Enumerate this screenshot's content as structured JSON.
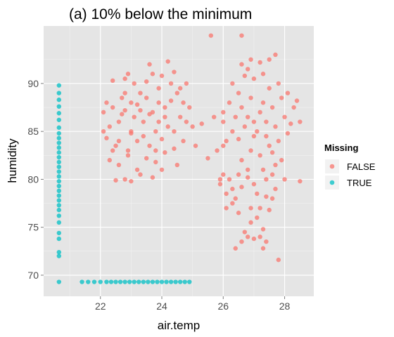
{
  "chart_data": {
    "type": "scatter",
    "title": "(a)  10% below the minimum",
    "xlabel": "air.temp",
    "ylabel": "humidity",
    "xlim": [
      20.15,
      28.95
    ],
    "ylim": [
      67.8,
      96.0
    ],
    "x_ticks": [
      22,
      24,
      26,
      28
    ],
    "y_ticks": [
      70,
      75,
      80,
      85,
      90
    ],
    "grid": true,
    "legend": {
      "title": "Missing",
      "position": "right",
      "entries": [
        {
          "label": "FALSE",
          "color": "#F8766D"
        },
        {
          "label": "TRUE",
          "color": "#00BFC4"
        }
      ]
    },
    "series": [
      {
        "name": "FALSE",
        "color": "#F8766D",
        "points": [
          [
            22.1,
            87.0
          ],
          [
            22.2,
            88.0
          ],
          [
            22.4,
            87.5
          ],
          [
            22.6,
            86.0
          ],
          [
            22.8,
            89.0
          ],
          [
            23.0,
            88.0
          ],
          [
            23.1,
            86.5
          ],
          [
            23.3,
            87.2
          ],
          [
            23.5,
            88.5
          ],
          [
            23.7,
            87.0
          ],
          [
            23.9,
            86.0
          ],
          [
            24.1,
            87.5
          ],
          [
            24.3,
            88.2
          ],
          [
            24.5,
            89.0
          ],
          [
            24.7,
            88.0
          ],
          [
            24.6,
            86.5
          ],
          [
            24.2,
            85.5
          ],
          [
            23.8,
            85.0
          ],
          [
            23.4,
            84.5
          ],
          [
            23.0,
            85.0
          ],
          [
            22.6,
            84.0
          ],
          [
            22.3,
            85.5
          ],
          [
            22.2,
            84.3
          ],
          [
            22.5,
            83.5
          ],
          [
            22.9,
            83.0
          ],
          [
            23.2,
            84.0
          ],
          [
            23.6,
            83.5
          ],
          [
            24.0,
            84.2
          ],
          [
            24.4,
            85.0
          ],
          [
            24.8,
            86.0
          ],
          [
            24.9,
            87.5
          ],
          [
            24.6,
            89.5
          ],
          [
            24.3,
            90.0
          ],
          [
            23.9,
            89.5
          ],
          [
            23.5,
            90.2
          ],
          [
            23.1,
            90.0
          ],
          [
            22.8,
            90.5
          ],
          [
            22.4,
            90.3
          ],
          [
            22.7,
            88.5
          ],
          [
            23.3,
            89.0
          ],
          [
            23.7,
            91.0
          ],
          [
            24.0,
            90.8
          ],
          [
            24.4,
            91.2
          ],
          [
            22.9,
            91.0
          ],
          [
            23.6,
            92.0
          ],
          [
            24.2,
            92.3
          ],
          [
            23.9,
            88.0
          ],
          [
            23.4,
            86.0
          ],
          [
            22.7,
            86.8
          ],
          [
            24.1,
            86.5
          ],
          [
            22.3,
            82.0
          ],
          [
            22.6,
            81.5
          ],
          [
            22.9,
            82.5
          ],
          [
            23.2,
            81.0
          ],
          [
            23.5,
            82.2
          ],
          [
            23.8,
            81.8
          ],
          [
            24.1,
            82.8
          ],
          [
            24.4,
            83.2
          ],
          [
            22.8,
            80.0
          ],
          [
            23.0,
            79.8
          ],
          [
            22.5,
            79.9
          ],
          [
            23.3,
            80.5
          ],
          [
            23.7,
            80.2
          ],
          [
            24.0,
            81.0
          ],
          [
            24.5,
            81.5
          ],
          [
            22.4,
            83.0
          ],
          [
            23.0,
            84.8
          ],
          [
            24.7,
            84.0
          ],
          [
            25.0,
            85.5
          ],
          [
            22.1,
            85.0
          ],
          [
            23.2,
            87.8
          ],
          [
            24.8,
            90.0
          ],
          [
            23.8,
            83.0
          ],
          [
            22.8,
            87.2
          ],
          [
            23.6,
            86.8
          ],
          [
            25.3,
            85.8
          ],
          [
            25.1,
            83.5
          ],
          [
            25.5,
            82.2
          ],
          [
            25.7,
            86.5
          ],
          [
            25.9,
            80.0
          ],
          [
            25.6,
            95.0
          ],
          [
            26.6,
            95.0
          ],
          [
            25.8,
            83.0
          ],
          [
            25.9,
            79.5
          ],
          [
            26.0,
            80.5
          ],
          [
            26.1,
            78.5
          ],
          [
            26.3,
            77.5
          ],
          [
            26.5,
            76.5
          ],
          [
            26.6,
            73.5
          ],
          [
            26.4,
            72.8
          ],
          [
            26.7,
            74.5
          ],
          [
            26.9,
            75.5
          ],
          [
            27.1,
            76.0
          ],
          [
            27.3,
            74.8
          ],
          [
            27.2,
            77.0
          ],
          [
            27.5,
            76.8
          ],
          [
            27.6,
            78.0
          ],
          [
            27.7,
            79.0
          ],
          [
            27.4,
            80.0
          ],
          [
            27.0,
            79.5
          ],
          [
            26.8,
            81.0
          ],
          [
            26.5,
            80.5
          ],
          [
            26.2,
            80.0
          ],
          [
            26.3,
            79.0
          ],
          [
            26.1,
            77.0
          ],
          [
            26.4,
            78.0
          ],
          [
            26.6,
            82.0
          ],
          [
            26.9,
            83.0
          ],
          [
            27.2,
            82.5
          ],
          [
            27.5,
            83.5
          ],
          [
            27.8,
            84.0
          ],
          [
            27.9,
            82.0
          ],
          [
            27.7,
            81.5
          ],
          [
            28.0,
            80.0
          ],
          [
            27.6,
            80.5
          ],
          [
            27.3,
            81.0
          ],
          [
            27.0,
            84.5
          ],
          [
            26.7,
            85.5
          ],
          [
            26.4,
            86.5
          ],
          [
            26.6,
            87.5
          ],
          [
            26.9,
            88.5
          ],
          [
            27.2,
            87.0
          ],
          [
            27.4,
            86.0
          ],
          [
            27.7,
            85.5
          ],
          [
            28.0,
            86.5
          ],
          [
            28.3,
            87.5
          ],
          [
            28.4,
            88.2
          ],
          [
            28.1,
            89.0
          ],
          [
            27.8,
            90.0
          ],
          [
            27.5,
            89.5
          ],
          [
            27.3,
            91.0
          ],
          [
            27.0,
            90.5
          ],
          [
            26.8,
            91.5
          ],
          [
            26.6,
            92.0
          ],
          [
            26.9,
            92.5
          ],
          [
            27.2,
            92.2
          ],
          [
            27.5,
            92.5
          ],
          [
            26.5,
            89.0
          ],
          [
            26.2,
            88.0
          ],
          [
            26.0,
            87.0
          ],
          [
            26.3,
            85.0
          ],
          [
            26.1,
            84.0
          ],
          [
            26.0,
            83.5
          ],
          [
            26.8,
            86.5
          ],
          [
            27.1,
            85.0
          ],
          [
            27.6,
            87.5
          ],
          [
            27.9,
            88.5
          ],
          [
            28.2,
            85.8
          ],
          [
            28.5,
            86.0
          ],
          [
            28.1,
            84.8
          ],
          [
            27.4,
            84.5
          ],
          [
            26.8,
            80.2
          ],
          [
            27.1,
            78.5
          ],
          [
            27.4,
            78.2
          ],
          [
            26.6,
            79.2
          ],
          [
            26.9,
            77.0
          ],
          [
            27.0,
            73.8
          ],
          [
            26.8,
            74.0
          ],
          [
            27.4,
            73.5
          ],
          [
            27.3,
            72.8
          ],
          [
            27.2,
            74.0
          ],
          [
            27.8,
            71.6
          ],
          [
            28.5,
            79.8
          ],
          [
            27.6,
            82.8
          ],
          [
            27.0,
            86.0
          ],
          [
            26.3,
            90.0
          ],
          [
            26.7,
            90.8
          ],
          [
            27.7,
            93.0
          ],
          [
            26.5,
            84.2
          ],
          [
            27.3,
            88.0
          ],
          [
            26.0,
            86.0
          ]
        ]
      },
      {
        "name": "TRUE",
        "color": "#00BFC4",
        "points": [
          [
            20.65,
            89.8
          ],
          [
            20.65,
            89.0
          ],
          [
            20.65,
            88.3
          ],
          [
            20.65,
            87.6
          ],
          [
            20.65,
            86.9
          ],
          [
            20.65,
            86.2
          ],
          [
            20.65,
            85.4
          ],
          [
            20.65,
            84.8
          ],
          [
            20.65,
            84.3
          ],
          [
            20.65,
            83.8
          ],
          [
            20.65,
            83.3
          ],
          [
            20.65,
            82.8
          ],
          [
            20.65,
            82.3
          ],
          [
            20.65,
            81.8
          ],
          [
            20.65,
            81.3
          ],
          [
            20.65,
            80.8
          ],
          [
            20.65,
            80.3
          ],
          [
            20.65,
            79.8
          ],
          [
            20.65,
            79.3
          ],
          [
            20.65,
            78.8
          ],
          [
            20.65,
            78.3
          ],
          [
            20.65,
            77.8
          ],
          [
            20.65,
            77.3
          ],
          [
            20.65,
            76.8
          ],
          [
            20.65,
            76.2
          ],
          [
            20.65,
            75.5
          ],
          [
            20.65,
            74.4
          ],
          [
            20.65,
            73.8
          ],
          [
            20.65,
            72.4
          ],
          [
            20.65,
            72.0
          ],
          [
            20.65,
            69.3
          ],
          [
            21.4,
            69.3
          ],
          [
            21.6,
            69.3
          ],
          [
            21.8,
            69.3
          ],
          [
            22.0,
            69.3
          ],
          [
            22.2,
            69.3
          ],
          [
            22.35,
            69.3
          ],
          [
            22.5,
            69.3
          ],
          [
            22.65,
            69.3
          ],
          [
            22.8,
            69.3
          ],
          [
            22.95,
            69.3
          ],
          [
            23.1,
            69.3
          ],
          [
            23.25,
            69.3
          ],
          [
            23.4,
            69.3
          ],
          [
            23.55,
            69.3
          ],
          [
            23.7,
            69.3
          ],
          [
            23.85,
            69.3
          ],
          [
            24.0,
            69.3
          ],
          [
            24.15,
            69.3
          ],
          [
            24.3,
            69.3
          ],
          [
            24.45,
            69.3
          ],
          [
            24.6,
            69.3
          ],
          [
            24.75,
            69.3
          ],
          [
            24.9,
            69.3
          ]
        ]
      }
    ]
  }
}
